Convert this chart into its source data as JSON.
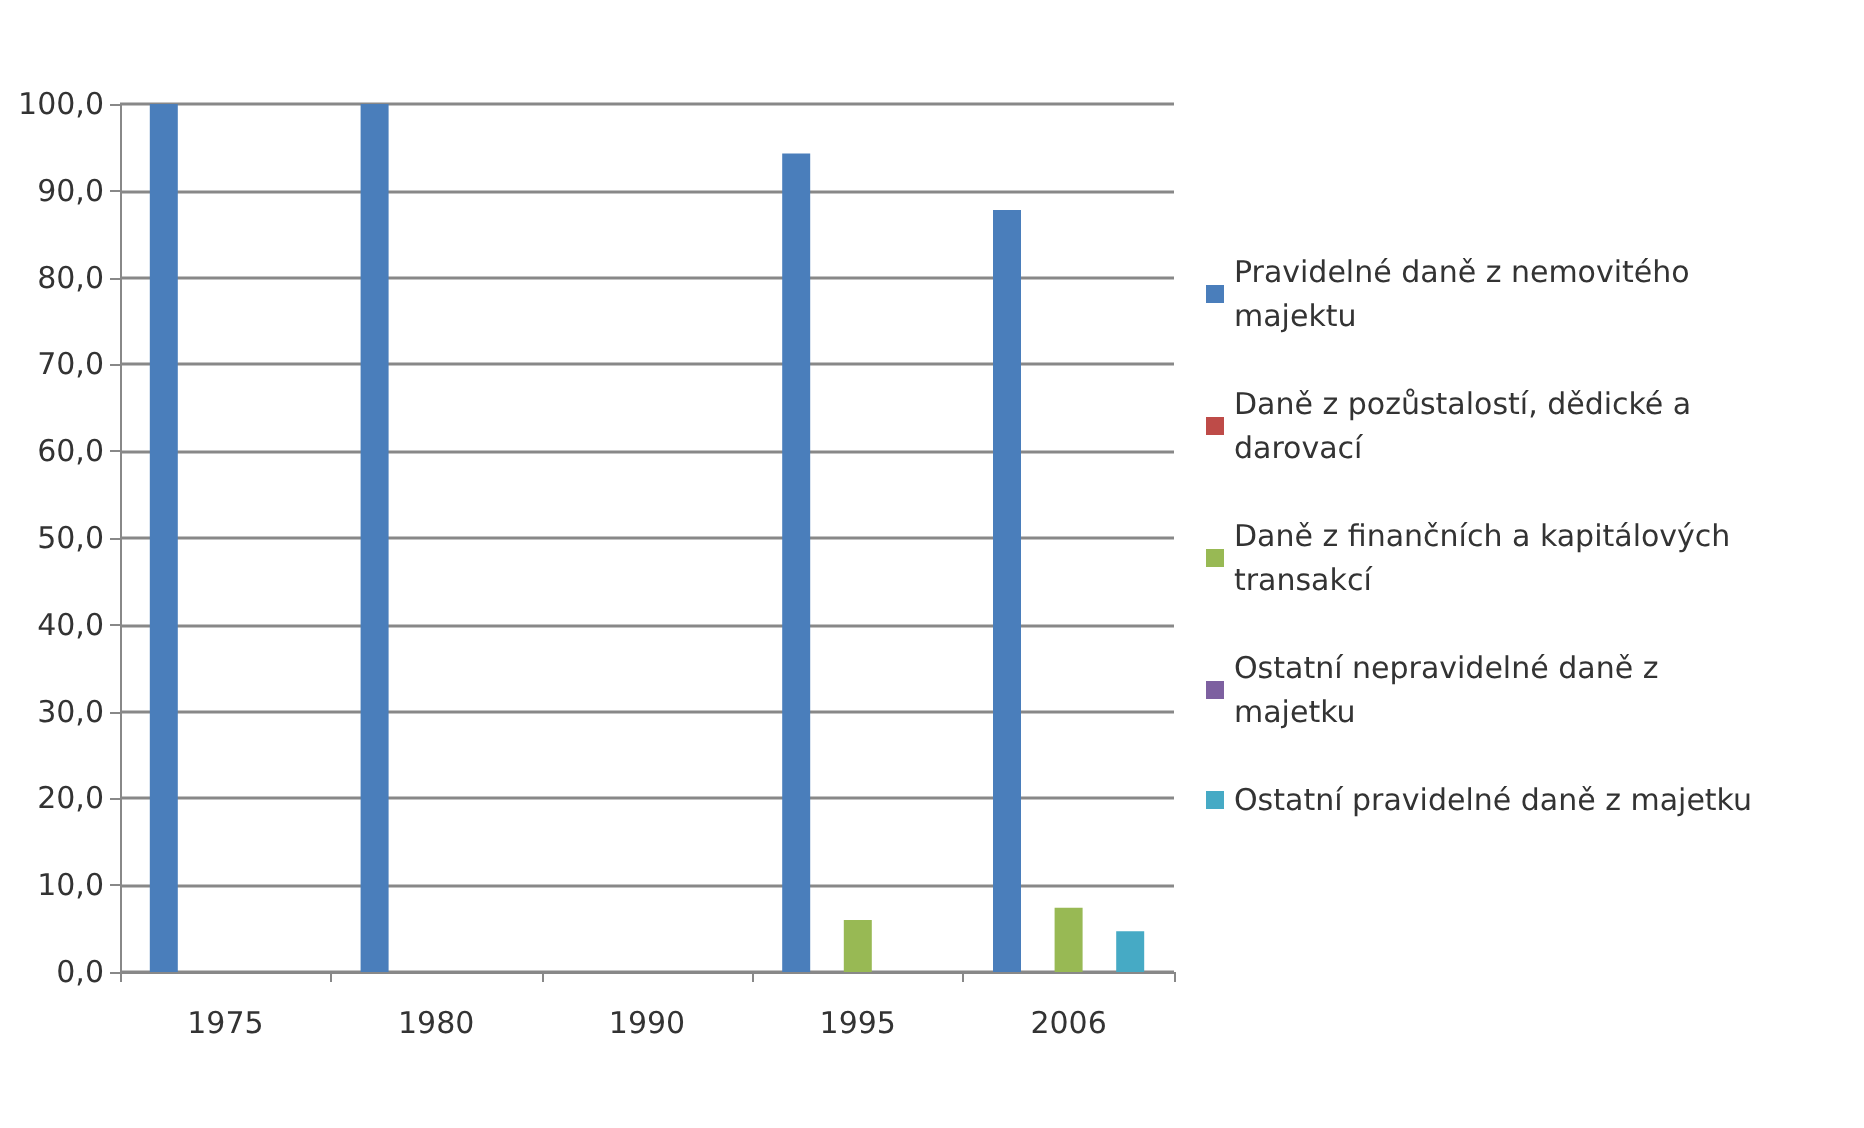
{
  "chart_data": {
    "type": "bar",
    "categories": [
      "1975",
      "1980",
      "1990",
      "1995",
      "2006"
    ],
    "series": [
      {
        "name": "Pravidelné daně z nemovitého majektu",
        "color": "#4a7ebb",
        "values": [
          100.0,
          100.0,
          0,
          94.3,
          87.8
        ]
      },
      {
        "name": "Daně z pozůstalostí, dědické a darovací",
        "color": "#be4b48",
        "values": [
          0,
          0,
          0,
          0,
          0
        ]
      },
      {
        "name": "Daně z finančních a kapitálových transakcí",
        "color": "#98b954",
        "values": [
          0,
          0,
          0,
          6.0,
          7.4
        ]
      },
      {
        "name": "Ostatní nepravidelné daně z majetku",
        "color": "#7d60a0",
        "values": [
          0,
          0,
          0,
          0,
          0
        ]
      },
      {
        "name": "Ostatní pravidelné daně z majetku",
        "color": "#46aac5",
        "values": [
          0,
          0,
          0,
          0,
          4.7
        ]
      }
    ],
    "ylim": [
      0,
      100
    ],
    "yticks": [
      {
        "value": 0,
        "label": "0,0"
      },
      {
        "value": 10,
        "label": "10,0"
      },
      {
        "value": 20,
        "label": "20,0"
      },
      {
        "value": 30,
        "label": "30,0"
      },
      {
        "value": 40,
        "label": "40,0"
      },
      {
        "value": 50,
        "label": "50,0"
      },
      {
        "value": 60,
        "label": "60,0"
      },
      {
        "value": 70,
        "label": "70,0"
      },
      {
        "value": 80,
        "label": "80,0"
      },
      {
        "value": 90,
        "label": "90,0"
      },
      {
        "value": 100,
        "label": "100,0"
      }
    ],
    "grid": "y",
    "legend": "right"
  }
}
